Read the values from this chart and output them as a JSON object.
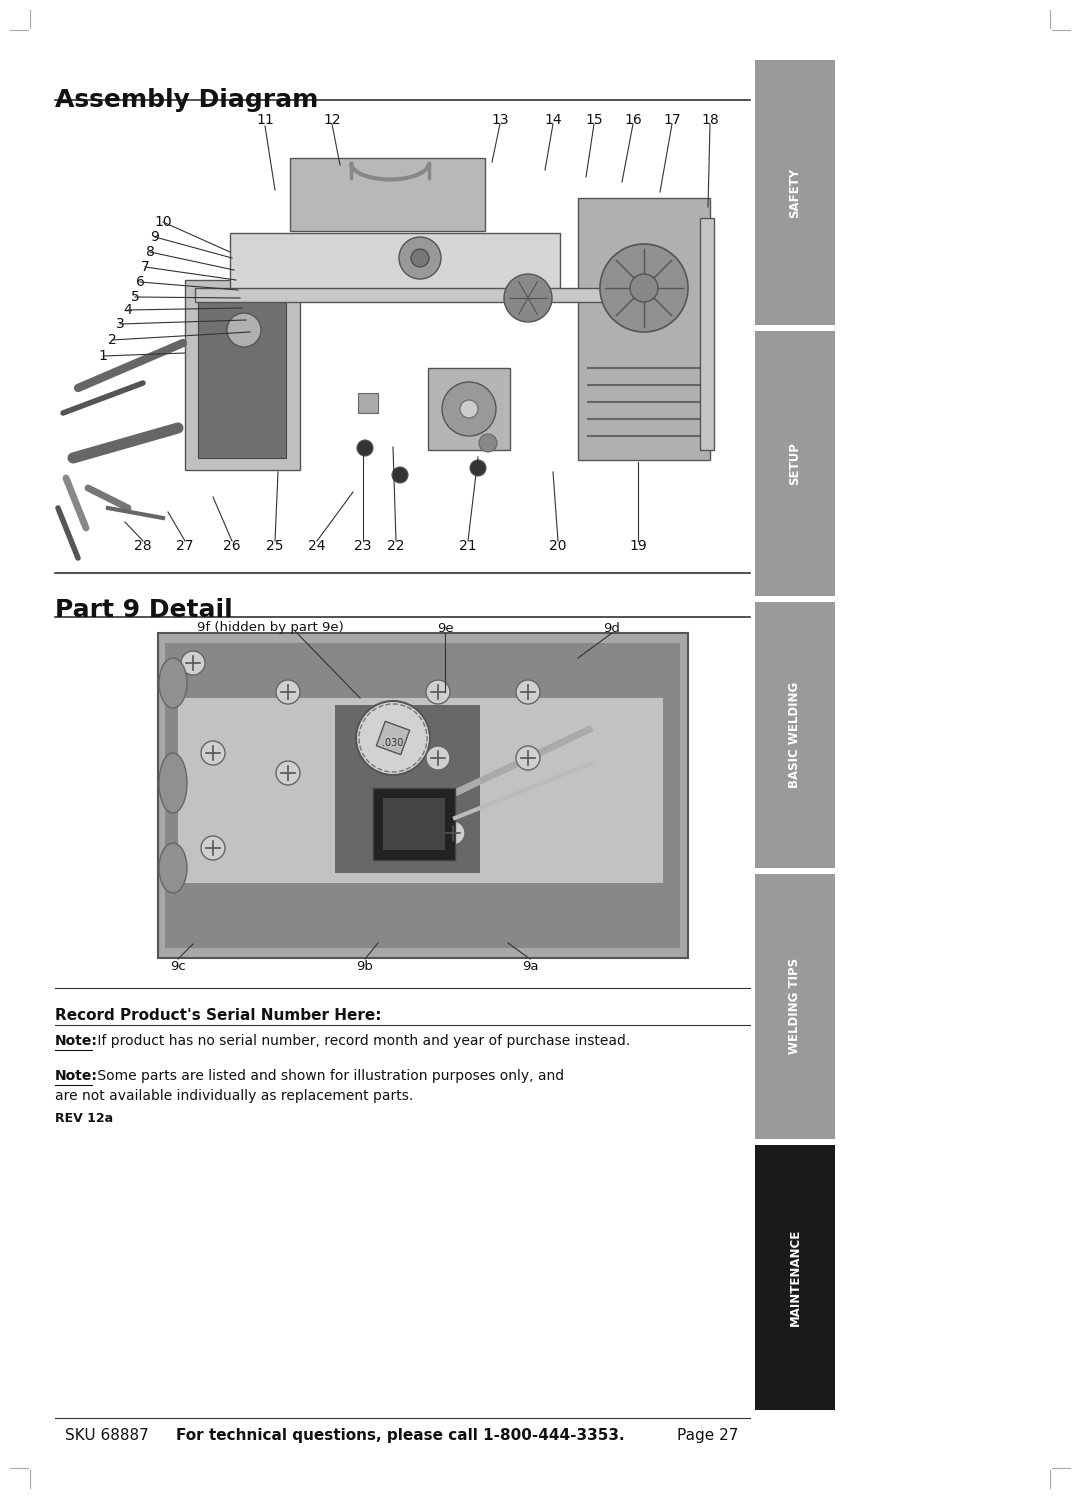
{
  "bg_color": "#ffffff",
  "title_assembly": "Assembly Diagram",
  "title_part9": "Part 9 Detail",
  "section_labels": [
    "SAFETY",
    "SETUP",
    "BASIC WELDING",
    "WELDING TIPS",
    "MAINTENANCE"
  ],
  "section_colors": [
    "#9a9a9a",
    "#9a9a9a",
    "#9a9a9a",
    "#9a9a9a",
    "#1a1a1a"
  ],
  "footer_sku": "SKU 68887",
  "footer_center": "For technical questions, please call 1-800-444-3353.",
  "footer_page": "Page 27",
  "serial_label": "Record Product's Serial Number Here:",
  "note1_bold": "Note:",
  "note1_rest": " If product has no serial number, record month and year of purchase instead.",
  "note2_bold": "Note:",
  "note2_rest": " Some parts are listed and shown for illustration purposes only, and",
  "note2_line2": "are not available individually as replacement parts.",
  "rev": "REV 12a",
  "part9_9f": "9f (hidden by part 9e)",
  "part9_9e": "9e",
  "part9_9d": "9d",
  "part9_9c": "9c",
  "part9_9b": "9b",
  "part9_9a": "9a",
  "divider_color": "#333333"
}
